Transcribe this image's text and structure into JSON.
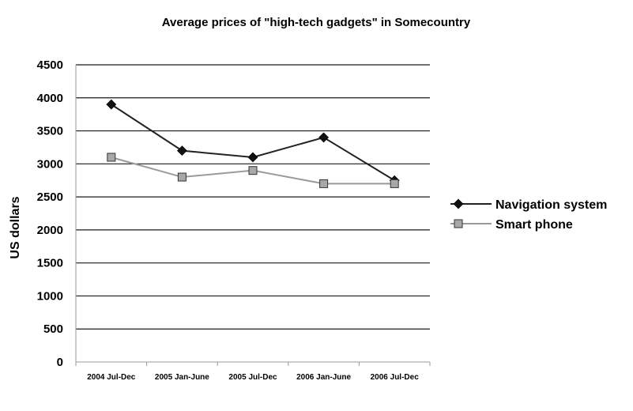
{
  "chart_data": {
    "type": "line",
    "title": "Average prices of \"high-tech gadgets\" in Somecountry",
    "xlabel": "",
    "ylabel": "US dollars",
    "categories": [
      "2004 Jul-Dec",
      "2005 Jan-June",
      "2005 Jul-Dec",
      "2006 Jan-June",
      "2006 Jul-Dec"
    ],
    "ylim": [
      0,
      4500
    ],
    "yticks": [
      "0",
      "500",
      "1000",
      "1500",
      "2000",
      "2500",
      "3000",
      "3500",
      "4000",
      "4500"
    ],
    "grid": true,
    "legend_position": "right",
    "series": [
      {
        "name": "Navigation system",
        "values": [
          3900,
          3200,
          3100,
          3400,
          2750
        ],
        "color": "#222222",
        "marker": "diamond"
      },
      {
        "name": "Smart phone",
        "values": [
          3100,
          2800,
          2900,
          2700,
          2700
        ],
        "color": "#9a9a9a",
        "marker": "square"
      }
    ]
  }
}
